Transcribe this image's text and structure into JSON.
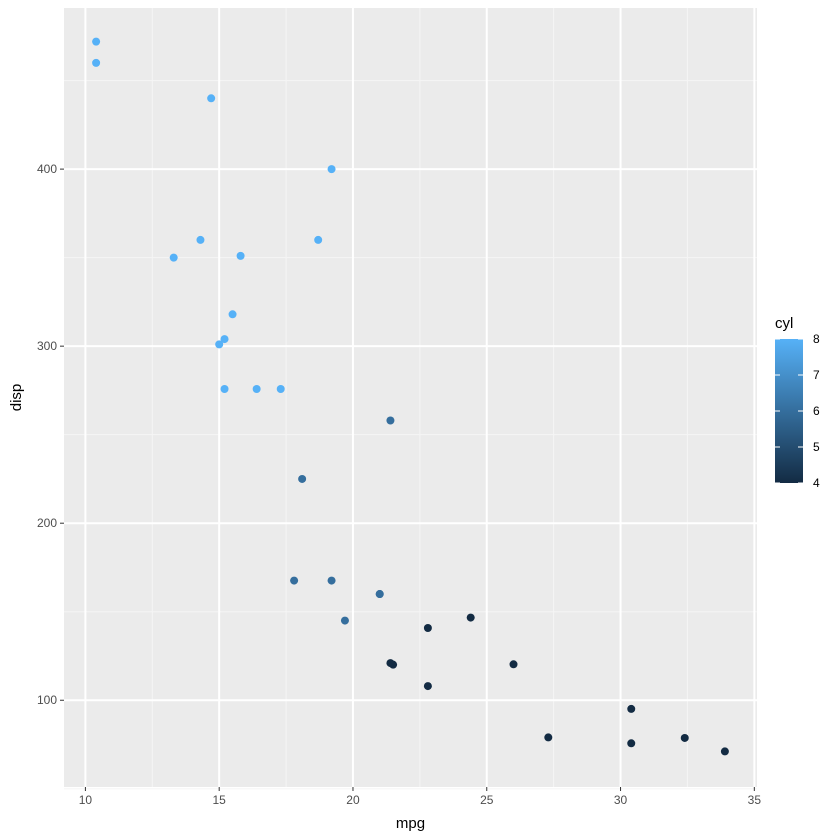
{
  "chart_data": {
    "type": "scatter",
    "xlabel": "mpg",
    "ylabel": "disp",
    "xlim": [
      9.2,
      35.1
    ],
    "ylim": [
      51,
      491
    ],
    "x_ticks": [
      10,
      15,
      20,
      25,
      30,
      35
    ],
    "x_minor": [
      12.5,
      17.5,
      22.5,
      27.5,
      32.5
    ],
    "y_ticks": [
      100,
      200,
      300,
      400
    ],
    "y_minor": [
      50,
      150,
      250,
      350,
      450
    ],
    "grid": true,
    "color_by": "cyl",
    "legend": {
      "title": "cyl",
      "placement": "right",
      "type": "colorbar",
      "min": 4,
      "max": 8,
      "ticks": [
        4,
        5,
        6,
        7,
        8
      ],
      "low_color": "#132B43",
      "high_color": "#56B1F7"
    },
    "points": [
      {
        "mpg": 21.0,
        "disp": 160,
        "cyl": 6
      },
      {
        "mpg": 21.0,
        "disp": 160,
        "cyl": 6
      },
      {
        "mpg": 22.8,
        "disp": 108,
        "cyl": 4
      },
      {
        "mpg": 21.4,
        "disp": 258,
        "cyl": 6
      },
      {
        "mpg": 18.7,
        "disp": 360,
        "cyl": 8
      },
      {
        "mpg": 18.1,
        "disp": 225,
        "cyl": 6
      },
      {
        "mpg": 14.3,
        "disp": 360,
        "cyl": 8
      },
      {
        "mpg": 24.4,
        "disp": 146.7,
        "cyl": 4
      },
      {
        "mpg": 22.8,
        "disp": 140.8,
        "cyl": 4
      },
      {
        "mpg": 19.2,
        "disp": 167.6,
        "cyl": 6
      },
      {
        "mpg": 17.8,
        "disp": 167.6,
        "cyl": 6
      },
      {
        "mpg": 16.4,
        "disp": 275.8,
        "cyl": 8
      },
      {
        "mpg": 17.3,
        "disp": 275.8,
        "cyl": 8
      },
      {
        "mpg": 15.2,
        "disp": 275.8,
        "cyl": 8
      },
      {
        "mpg": 10.4,
        "disp": 472,
        "cyl": 8
      },
      {
        "mpg": 10.4,
        "disp": 460,
        "cyl": 8
      },
      {
        "mpg": 14.7,
        "disp": 440,
        "cyl": 8
      },
      {
        "mpg": 32.4,
        "disp": 78.7,
        "cyl": 4
      },
      {
        "mpg": 30.4,
        "disp": 75.7,
        "cyl": 4
      },
      {
        "mpg": 33.9,
        "disp": 71.1,
        "cyl": 4
      },
      {
        "mpg": 21.5,
        "disp": 120.1,
        "cyl": 4
      },
      {
        "mpg": 15.5,
        "disp": 318,
        "cyl": 8
      },
      {
        "mpg": 15.2,
        "disp": 304,
        "cyl": 8
      },
      {
        "mpg": 13.3,
        "disp": 350,
        "cyl": 8
      },
      {
        "mpg": 19.2,
        "disp": 400,
        "cyl": 8
      },
      {
        "mpg": 27.3,
        "disp": 79,
        "cyl": 4
      },
      {
        "mpg": 26.0,
        "disp": 120.3,
        "cyl": 4
      },
      {
        "mpg": 30.4,
        "disp": 95.1,
        "cyl": 4
      },
      {
        "mpg": 15.8,
        "disp": 351,
        "cyl": 8
      },
      {
        "mpg": 19.7,
        "disp": 145,
        "cyl": 6
      },
      {
        "mpg": 15.0,
        "disp": 301,
        "cyl": 8
      },
      {
        "mpg": 21.4,
        "disp": 121,
        "cyl": 4
      }
    ]
  }
}
